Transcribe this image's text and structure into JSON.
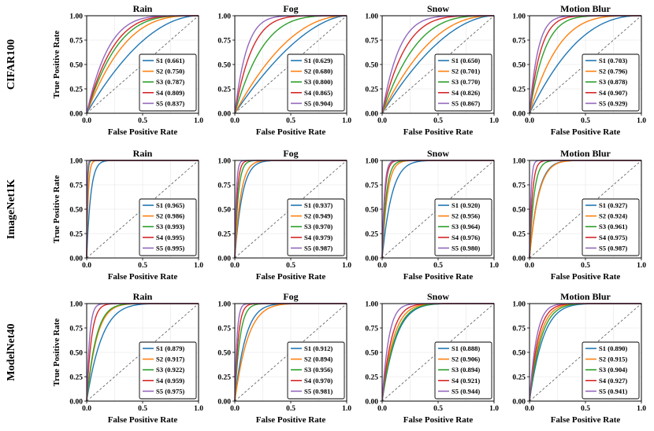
{
  "chart_data": {
    "type": "line",
    "xlabel": "False Positive Rate",
    "ylabel": "True Positive Rate",
    "xlim": [
      0,
      1
    ],
    "ylim": [
      0,
      1
    ],
    "xticks": [
      "0.0",
      "0.5",
      "1.0"
    ],
    "yticks": [
      "0.00",
      "0.25",
      "0.50",
      "0.75",
      "1.00"
    ],
    "grid": true,
    "legend_position": "lower-right",
    "diagonal": "dashed",
    "series_colors": {
      "S1": "#1f77b4",
      "S2": "#ff7f0e",
      "S3": "#2ca02c",
      "S4": "#d62728",
      "S5": "#9467bd"
    },
    "rows": [
      {
        "label": "CIFAR100",
        "panels": [
          {
            "title": "Rain",
            "series": [
              {
                "name": "S1",
                "auc": 0.661,
                "label": "S1 (0.661)"
              },
              {
                "name": "S2",
                "auc": 0.75,
                "label": "S2 (0.750)"
              },
              {
                "name": "S3",
                "auc": 0.787,
                "label": "S3 (0.787)"
              },
              {
                "name": "S4",
                "auc": 0.809,
                "label": "S4 (0.809)"
              },
              {
                "name": "S5",
                "auc": 0.837,
                "label": "S5 (0.837)"
              }
            ]
          },
          {
            "title": "Fog",
            "series": [
              {
                "name": "S1",
                "auc": 0.629,
                "label": "S1 (0.629)"
              },
              {
                "name": "S2",
                "auc": 0.68,
                "label": "S2 (0.680)"
              },
              {
                "name": "S3",
                "auc": 0.8,
                "label": "S3 (0.800)"
              },
              {
                "name": "S4",
                "auc": 0.865,
                "label": "S4 (0.865)"
              },
              {
                "name": "S5",
                "auc": 0.904,
                "label": "S5 (0.904)"
              }
            ]
          },
          {
            "title": "Snow",
            "series": [
              {
                "name": "S1",
                "auc": 0.65,
                "label": "S1 (0.650)"
              },
              {
                "name": "S2",
                "auc": 0.701,
                "label": "S2 (0.701)"
              },
              {
                "name": "S3",
                "auc": 0.77,
                "label": "S3 (0.770)"
              },
              {
                "name": "S4",
                "auc": 0.826,
                "label": "S4 (0.826)"
              },
              {
                "name": "S5",
                "auc": 0.867,
                "label": "S5 (0.867)"
              }
            ]
          },
          {
            "title": "Motion Blur",
            "series": [
              {
                "name": "S1",
                "auc": 0.703,
                "label": "S1 (0.703)"
              },
              {
                "name": "S2",
                "auc": 0.796,
                "label": "S2 (0.796)"
              },
              {
                "name": "S3",
                "auc": 0.878,
                "label": "S3 (0.878)"
              },
              {
                "name": "S4",
                "auc": 0.907,
                "label": "S4 (0.907)"
              },
              {
                "name": "S5",
                "auc": 0.929,
                "label": "S5 (0.929)"
              }
            ]
          }
        ]
      },
      {
        "label": "ImageNet1K",
        "panels": [
          {
            "title": "Rain",
            "series": [
              {
                "name": "S1",
                "auc": 0.965,
                "label": "S1 (0.965)"
              },
              {
                "name": "S2",
                "auc": 0.986,
                "label": "S2 (0.986)"
              },
              {
                "name": "S3",
                "auc": 0.993,
                "label": "S3 (0.993)"
              },
              {
                "name": "S4",
                "auc": 0.995,
                "label": "S4 (0.995)"
              },
              {
                "name": "S5",
                "auc": 0.995,
                "label": "S5 (0.995)"
              }
            ]
          },
          {
            "title": "Fog",
            "series": [
              {
                "name": "S1",
                "auc": 0.937,
                "label": "S1 (0.937)"
              },
              {
                "name": "S2",
                "auc": 0.949,
                "label": "S2 (0.949)"
              },
              {
                "name": "S3",
                "auc": 0.97,
                "label": "S3 (0.970)"
              },
              {
                "name": "S4",
                "auc": 0.979,
                "label": "S4 (0.979)"
              },
              {
                "name": "S5",
                "auc": 0.987,
                "label": "S5 (0.987)"
              }
            ]
          },
          {
            "title": "Snow",
            "series": [
              {
                "name": "S1",
                "auc": 0.92,
                "label": "S1 (0.920)"
              },
              {
                "name": "S2",
                "auc": 0.956,
                "label": "S2 (0.956)"
              },
              {
                "name": "S3",
                "auc": 0.964,
                "label": "S3 (0.964)"
              },
              {
                "name": "S4",
                "auc": 0.976,
                "label": "S4 (0.976)"
              },
              {
                "name": "S5",
                "auc": 0.98,
                "label": "S5 (0.980)"
              }
            ]
          },
          {
            "title": "Motion Blur",
            "series": [
              {
                "name": "S1",
                "auc": 0.927,
                "label": "S1 (0.927)"
              },
              {
                "name": "S2",
                "auc": 0.924,
                "label": "S2 (0.924)"
              },
              {
                "name": "S3",
                "auc": 0.961,
                "label": "S3 (0.961)"
              },
              {
                "name": "S4",
                "auc": 0.975,
                "label": "S4 (0.975)"
              },
              {
                "name": "S5",
                "auc": 0.987,
                "label": "S5 (0.987)"
              }
            ]
          }
        ]
      },
      {
        "label": "ModelNet40",
        "panels": [
          {
            "title": "Rain",
            "series": [
              {
                "name": "S1",
                "auc": 0.879,
                "label": "S1 (0.879)"
              },
              {
                "name": "S2",
                "auc": 0.917,
                "label": "S2 (0.917)"
              },
              {
                "name": "S3",
                "auc": 0.922,
                "label": "S3 (0.922)"
              },
              {
                "name": "S4",
                "auc": 0.959,
                "label": "S4 (0.959)"
              },
              {
                "name": "S5",
                "auc": 0.975,
                "label": "S5 (0.975)"
              }
            ]
          },
          {
            "title": "Fog",
            "series": [
              {
                "name": "S1",
                "auc": 0.912,
                "label": "S1 (0.912)"
              },
              {
                "name": "S2",
                "auc": 0.894,
                "label": "S2 (0.894)"
              },
              {
                "name": "S3",
                "auc": 0.956,
                "label": "S3 (0.956)"
              },
              {
                "name": "S4",
                "auc": 0.97,
                "label": "S4 (0.970)"
              },
              {
                "name": "S5",
                "auc": 0.981,
                "label": "S5 (0.981)"
              }
            ]
          },
          {
            "title": "Snow",
            "series": [
              {
                "name": "S1",
                "auc": 0.888,
                "label": "S1 (0.888)"
              },
              {
                "name": "S2",
                "auc": 0.906,
                "label": "S2 (0.906)"
              },
              {
                "name": "S3",
                "auc": 0.894,
                "label": "S3 (0.894)"
              },
              {
                "name": "S4",
                "auc": 0.921,
                "label": "S4 (0.921)"
              },
              {
                "name": "S5",
                "auc": 0.944,
                "label": "S5 (0.944)"
              }
            ]
          },
          {
            "title": "Motion Blur",
            "series": [
              {
                "name": "S1",
                "auc": 0.89,
                "label": "S1 (0.890)"
              },
              {
                "name": "S2",
                "auc": 0.915,
                "label": "S2 (0.915)"
              },
              {
                "name": "S3",
                "auc": 0.904,
                "label": "S3 (0.904)"
              },
              {
                "name": "S4",
                "auc": 0.927,
                "label": "S4 (0.927)"
              },
              {
                "name": "S5",
                "auc": 0.941,
                "label": "S5 (0.941)"
              }
            ]
          }
        ]
      }
    ]
  }
}
